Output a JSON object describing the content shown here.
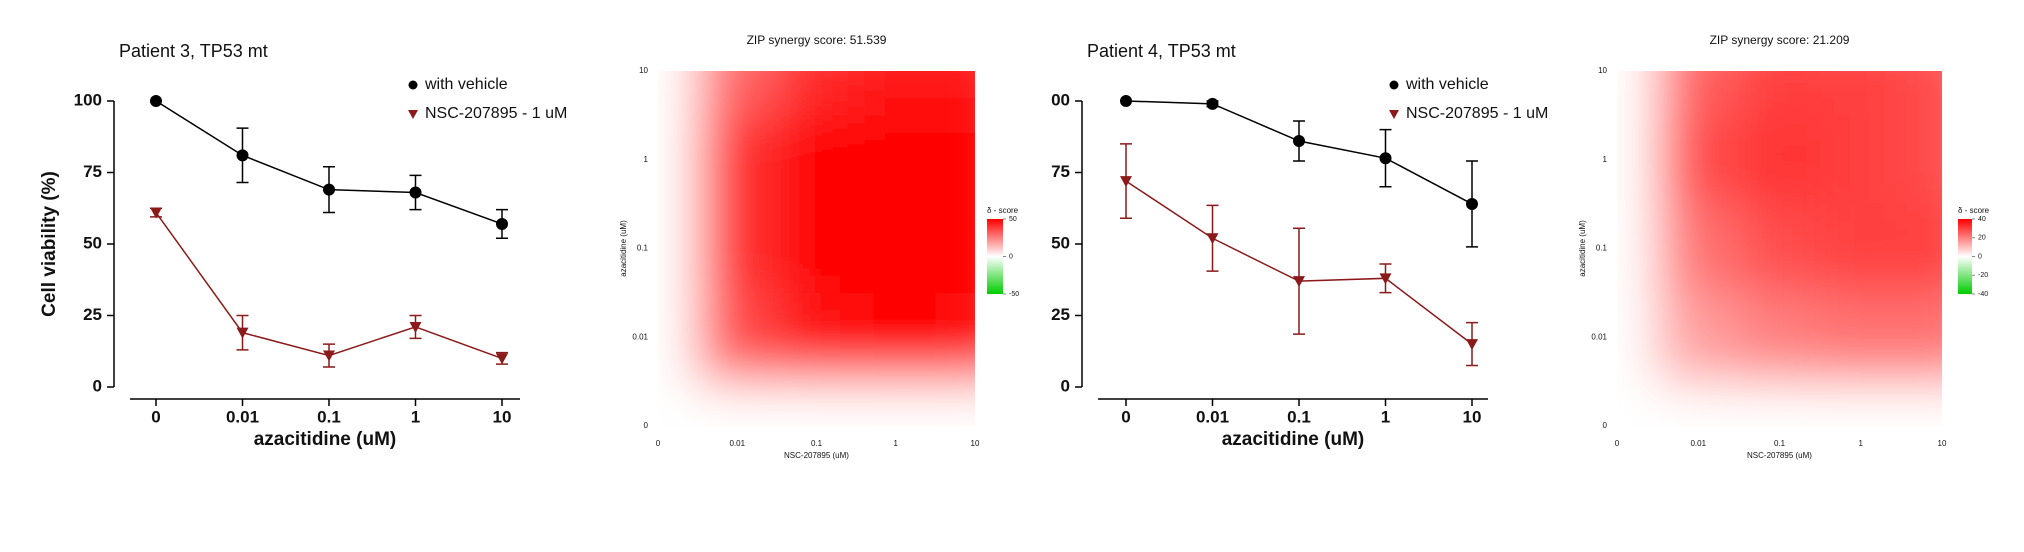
{
  "chart_data": [
    {
      "type": "line",
      "title": "Patient 3, TP53 mt",
      "xlabel": "azacitidine (uM)",
      "ylabel": "Cell viability (%)",
      "categories": [
        "0",
        "0.01",
        "0.1",
        "1",
        "10"
      ],
      "ylim": [
        0,
        100
      ],
      "yticks": [
        0,
        25,
        50,
        75,
        100
      ],
      "series": [
        {
          "name": "with vehicle",
          "color": "#000000",
          "marker": "circle",
          "values": [
            100,
            81,
            69,
            68,
            57
          ],
          "errors": [
            0,
            9.5,
            8,
            6,
            5
          ]
        },
        {
          "name": "NSC-207895 - 1 uM",
          "color": "#8b1a1a",
          "marker": "triangle-down",
          "values": [
            61,
            19,
            11,
            21,
            10
          ],
          "errors": [
            1.5,
            6,
            4,
            4,
            2
          ]
        }
      ]
    },
    {
      "type": "heatmap",
      "title": "ZIP synergy score: 51.539",
      "xlabel": "NSC-207895 (uM)",
      "ylabel": "azacitidine (uM)",
      "x": [
        "0",
        "0.01",
        "0.1",
        "1",
        "10"
      ],
      "y": [
        "0",
        "0.01",
        "0.1",
        "1",
        "10"
      ],
      "z": [
        [
          0,
          0,
          0,
          0,
          0
        ],
        [
          0,
          35,
          45,
          50,
          48
        ],
        [
          0,
          40,
          55,
          62,
          55
        ],
        [
          0,
          40,
          52,
          55,
          50
        ],
        [
          0,
          30,
          42,
          45,
          45
        ]
      ],
      "colorbar_label": "δ - score",
      "clim": [
        -50,
        50
      ],
      "cticks": [
        50,
        0,
        -50
      ]
    },
    {
      "type": "line",
      "title": "Patient 4, TP53 mt",
      "xlabel": "azacitidine (uM)",
      "categories": [
        "0",
        "0.01",
        "0.1",
        "1",
        "10"
      ],
      "ylim": [
        0,
        100
      ],
      "yticks": [
        0,
        25,
        50,
        75,
        {
          "value": 100,
          "label": "00"
        }
      ],
      "series": [
        {
          "name": "with vehicle",
          "color": "#000000",
          "marker": "circle",
          "values": [
            100,
            99,
            86,
            80,
            64
          ],
          "errors": [
            0,
            1,
            7,
            10,
            15
          ]
        },
        {
          "name": "NSC-207895 - 1 uM",
          "color": "#8b1a1a",
          "marker": "triangle-down",
          "values": [
            72,
            52,
            37,
            38,
            15
          ],
          "errors": [
            13,
            11.5,
            18.5,
            5,
            7.5
          ]
        }
      ]
    },
    {
      "type": "heatmap",
      "title": "ZIP synergy score: 21.209",
      "xlabel": "NSC-207895 (uM)",
      "ylabel": "azacitidine (uM)",
      "x": [
        "0",
        "0.01",
        "0.1",
        "1",
        "10"
      ],
      "y": [
        "0",
        "0.01",
        "0.1",
        "1",
        "10"
      ],
      "z": [
        [
          0,
          0,
          0,
          0,
          0
        ],
        [
          0,
          15,
          20,
          22,
          22
        ],
        [
          0,
          22,
          28,
          30,
          30
        ],
        [
          0,
          28,
          32,
          30,
          28
        ],
        [
          0,
          25,
          30,
          30,
          28
        ]
      ],
      "colorbar_label": "δ - score",
      "clim": [
        -40,
        40
      ],
      "cticks": [
        40,
        20,
        0,
        -20,
        -40
      ]
    }
  ]
}
